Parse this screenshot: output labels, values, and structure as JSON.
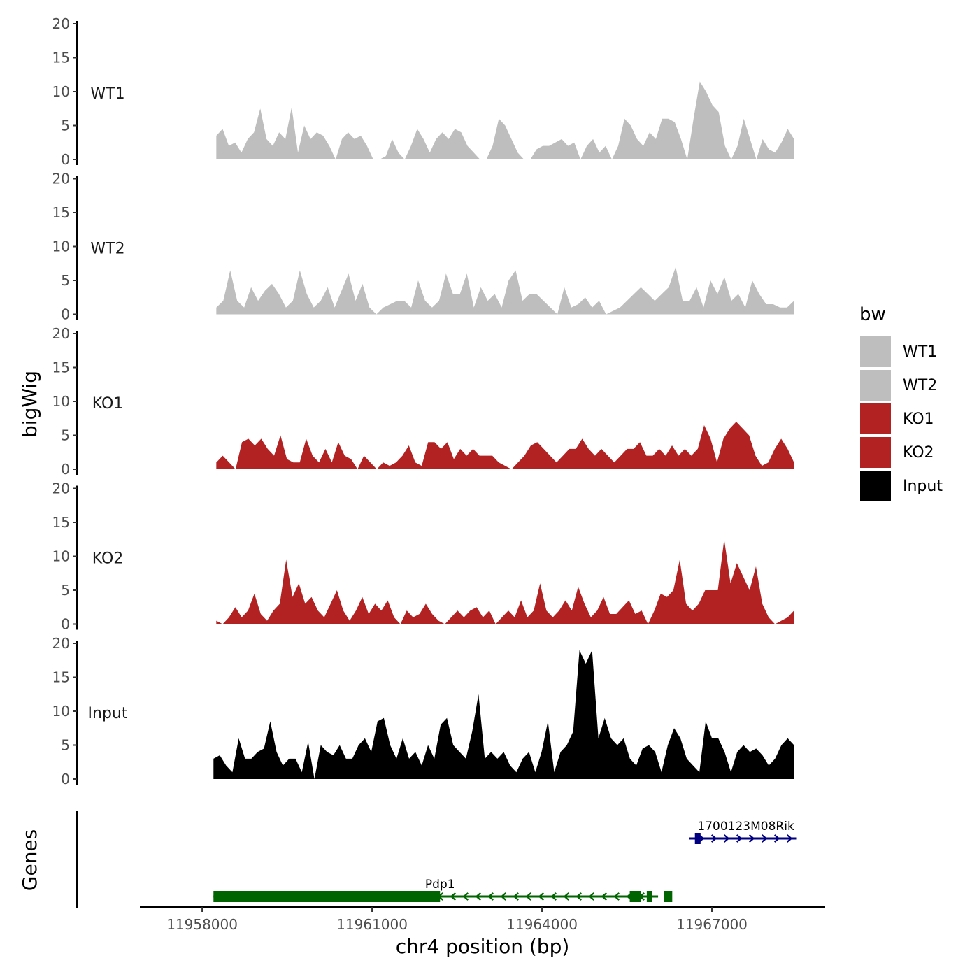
{
  "chart_data": {
    "type": "area",
    "xlabel": "chr4 position (bp)",
    "ylabel": "bigWig",
    "genes_label": "Genes",
    "xlim": [
      11956900,
      11969000
    ],
    "x_ticks": [
      11958000,
      11961000,
      11964000,
      11967000
    ],
    "x_tick_labels": [
      "11958000",
      "11961000",
      "11964000",
      "11967000"
    ],
    "ylim": [
      0,
      20
    ],
    "y_ticks": [
      0,
      5,
      10,
      15,
      20
    ],
    "legend": {
      "title": "bw",
      "entries": [
        {
          "label": "WT1",
          "color": "#bebebe"
        },
        {
          "label": "WT2",
          "color": "#bebebe"
        },
        {
          "label": "KO1",
          "color": "#b22222"
        },
        {
          "label": "KO2",
          "color": "#b22222"
        },
        {
          "label": "Input",
          "color": "#000000"
        }
      ]
    },
    "series": [
      {
        "name": "WT1",
        "color": "#bebebe",
        "x_start": 11958250,
        "x_end": 11968450,
        "values": [
          3.5,
          4.5,
          2,
          2.5,
          1,
          3,
          4,
          7.5,
          3,
          2,
          4,
          3,
          7.7,
          1,
          5,
          3,
          4,
          3.5,
          2,
          0,
          3,
          4,
          3,
          3.5,
          2,
          0,
          -1,
          0.5,
          3,
          1,
          -1,
          2,
          4.5,
          3,
          1,
          3,
          4,
          3,
          4.5,
          4,
          2,
          1,
          -1,
          0,
          2,
          6,
          5,
          3,
          1,
          0,
          0,
          1.5,
          2,
          2,
          2.5,
          3,
          2,
          2.5,
          0,
          2,
          3,
          1,
          2,
          0,
          2,
          6,
          5,
          3,
          2,
          4,
          3,
          6,
          6,
          5.5,
          3,
          0,
          6,
          11.5,
          10,
          8,
          7,
          2,
          0,
          2,
          6,
          3,
          0,
          3,
          1.5,
          1,
          2.5,
          4.5,
          3
        ]
      },
      {
        "name": "WT2",
        "color": "#bebebe",
        "x_start": 11958250,
        "x_end": 11968450,
        "values": [
          1,
          2,
          6.5,
          2,
          1,
          4,
          2,
          3.5,
          4.5,
          3,
          1,
          2,
          6.5,
          3,
          1,
          2,
          4,
          1,
          3.5,
          6,
          2,
          4.5,
          1,
          0,
          1,
          1.5,
          2,
          2,
          1,
          5,
          2,
          1,
          2,
          6,
          3,
          3,
          6,
          1,
          4,
          2,
          3,
          1,
          5,
          6.5,
          2,
          3,
          3,
          2,
          1,
          0,
          4,
          1,
          1.5,
          2.5,
          1,
          2,
          0,
          0.5,
          1,
          2,
          3,
          4,
          3,
          2,
          3,
          4,
          7,
          2,
          2,
          4,
          1,
          5,
          3,
          5.5,
          2,
          3,
          1,
          5,
          3,
          1.5,
          1.5,
          1,
          1,
          2
        ]
      },
      {
        "name": "KO1",
        "color": "#b22222",
        "x_start": 11958250,
        "x_end": 11968450,
        "values": [
          1,
          2,
          1,
          0,
          4,
          4.5,
          3.5,
          4.5,
          3,
          2,
          5,
          1.5,
          1,
          1,
          4.5,
          2,
          1,
          3,
          1,
          4,
          2,
          1.5,
          0,
          2,
          1,
          0,
          1,
          0.5,
          1,
          2,
          3.5,
          1,
          0.5,
          4,
          4,
          3,
          4,
          1.5,
          3,
          2,
          3,
          2,
          2,
          2,
          1,
          0.5,
          0,
          1,
          2,
          3.5,
          4,
          3,
          2,
          1,
          2,
          3,
          3,
          4.5,
          3,
          2,
          3,
          2,
          1,
          2,
          3,
          3,
          4,
          2,
          2,
          3,
          2,
          3.5,
          2,
          3,
          2,
          3,
          6.5,
          4.5,
          1,
          4.5,
          6,
          7,
          6,
          5,
          2,
          0.5,
          1,
          3,
          4.5,
          3,
          1
        ]
      },
      {
        "name": "KO2",
        "color": "#b22222",
        "x_start": 11958250,
        "x_end": 11968450,
        "values": [
          0.5,
          0,
          1,
          2.5,
          1,
          2,
          4.5,
          1.5,
          0.5,
          2,
          3,
          9.5,
          4,
          6,
          3,
          4,
          2,
          1,
          3,
          5,
          2,
          0.5,
          2,
          4,
          1.5,
          3,
          2,
          3.5,
          1,
          0,
          2,
          1,
          1.5,
          3,
          1.5,
          0.5,
          0,
          1,
          2,
          1,
          2,
          2.5,
          1,
          2,
          0,
          1,
          2,
          1,
          3.5,
          1,
          2,
          6,
          2,
          1,
          2,
          3.5,
          2,
          5.5,
          3,
          1,
          2,
          4,
          1.5,
          1.5,
          2.5,
          3.5,
          1.5,
          2,
          0,
          2,
          4.5,
          4,
          5,
          9.5,
          3,
          2,
          3,
          5,
          5,
          5,
          12.5,
          6,
          9,
          7,
          5,
          8.5,
          3,
          1,
          0,
          0.5,
          1,
          2
        ]
      },
      {
        "name": "Input",
        "color": "#000000",
        "x_start": 11958200,
        "x_end": 11968450,
        "values": [
          3,
          3.5,
          2,
          1,
          6,
          3,
          3,
          4,
          4.5,
          8.5,
          4,
          2,
          3,
          3,
          1,
          5.5,
          0,
          5,
          4,
          3.5,
          5,
          3,
          3,
          5,
          6,
          4,
          8.5,
          9,
          5,
          3,
          6,
          3,
          4,
          2,
          5,
          3,
          8,
          9,
          5,
          4,
          3,
          7,
          12.5,
          3,
          4,
          3,
          4,
          2,
          1,
          3,
          4,
          1,
          4,
          8.5,
          1,
          4,
          5,
          7,
          19,
          17,
          19,
          6,
          9,
          6,
          5,
          6,
          3,
          2,
          4.5,
          5,
          4,
          1,
          5,
          7.5,
          6,
          3,
          2,
          1,
          8.5,
          6,
          6,
          4,
          1,
          4,
          5,
          4,
          4.5,
          3.5,
          2,
          3,
          5,
          6,
          5
        ]
      }
    ],
    "genes": [
      {
        "name": "Pdp1",
        "strand": "-",
        "color": "#006400",
        "start": 11958200,
        "end": 11966050,
        "label_x": 11962200,
        "exons": [
          [
            11958200,
            11962200
          ],
          [
            11965550,
            11965750
          ],
          [
            11965850,
            11965950
          ],
          [
            11966150,
            11966300
          ]
        ]
      },
      {
        "name": "1700123M08Rik",
        "strand": "+",
        "color": "#000080",
        "start": 11966600,
        "end": 11968500,
        "label_x": 11967600,
        "exons": [
          [
            11966700,
            11966800
          ]
        ]
      }
    ]
  }
}
